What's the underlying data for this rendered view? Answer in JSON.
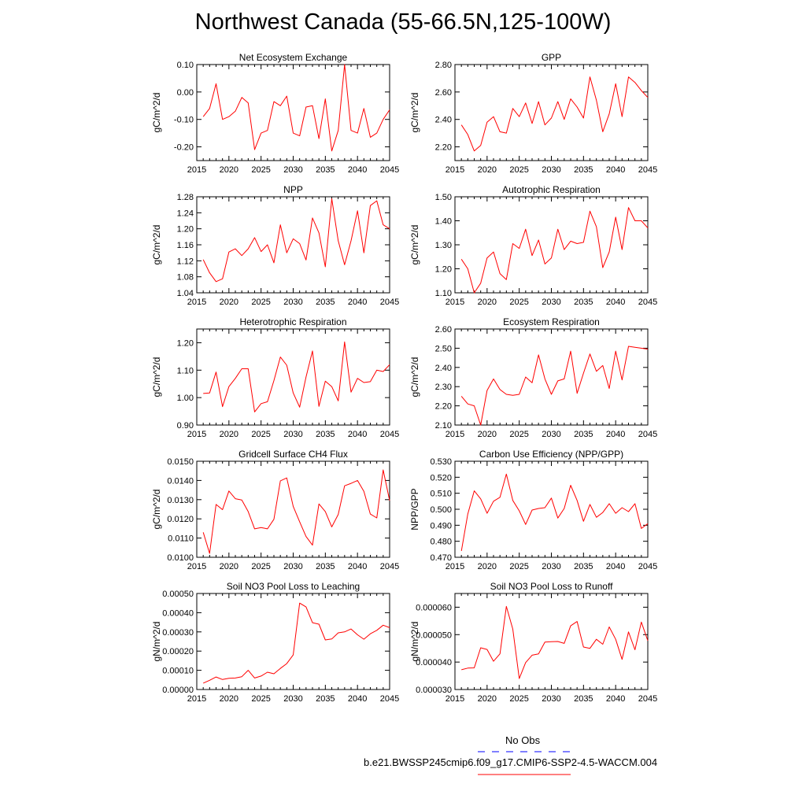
{
  "title": "Northwest Canada (55-66.5N,125-100W)",
  "colors": {
    "series": "#ff0000",
    "obs": "#0000ff",
    "axis": "#000000"
  },
  "legend": {
    "obs_label": "No Obs",
    "model_label": "b.e21.BWSSP245cmip6.f09_g17.CMIP6-SSP2-4.5-WACCM.004"
  },
  "chart_data": [
    {
      "type": "line",
      "title": "Net Ecosystem Exchange",
      "xlabel": "",
      "ylabel": "gC/m^2/d",
      "xlim": [
        2015,
        2045
      ],
      "ylim": [
        -0.25,
        0.1
      ],
      "xticks": [
        2015,
        2020,
        2025,
        2030,
        2035,
        2040,
        2045
      ],
      "xtick_labels": [
        "2015",
        "2020",
        "2025",
        "2030",
        "2035",
        "2040",
        "2045"
      ],
      "yticks": [
        -0.2,
        -0.1,
        0.0,
        0.1
      ],
      "ytick_labels": [
        "-0.20",
        "-0.10",
        "0.00",
        "0.10"
      ],
      "x": [
        2016,
        2017,
        2018,
        2019,
        2020,
        2021,
        2022,
        2023,
        2024,
        2025,
        2026,
        2027,
        2028,
        2029,
        2030,
        2031,
        2032,
        2033,
        2034,
        2035,
        2036,
        2037,
        2038,
        2039,
        2040,
        2041,
        2042,
        2043,
        2044,
        2045
      ],
      "series": [
        {
          "values": [
            -0.09,
            -0.06,
            0.03,
            -0.1,
            -0.09,
            -0.07,
            -0.02,
            -0.04,
            -0.21,
            -0.15,
            -0.14,
            -0.035,
            -0.05,
            -0.015,
            -0.15,
            -0.16,
            -0.055,
            -0.05,
            -0.17,
            -0.025,
            -0.215,
            -0.14,
            0.1,
            -0.14,
            -0.15,
            -0.06,
            -0.165,
            -0.15,
            -0.1,
            -0.065
          ]
        }
      ]
    },
    {
      "type": "line",
      "title": "GPP",
      "xlabel": "",
      "ylabel": "gC/m^2/d",
      "xlim": [
        2015,
        2045
      ],
      "ylim": [
        2.1,
        2.8
      ],
      "xticks": [
        2015,
        2020,
        2025,
        2030,
        2035,
        2040,
        2045
      ],
      "xtick_labels": [
        "2015",
        "2020",
        "2025",
        "2030",
        "2035",
        "2040",
        "2045"
      ],
      "yticks": [
        2.2,
        2.4,
        2.6,
        2.8
      ],
      "ytick_labels": [
        "2.20",
        "2.40",
        "2.60",
        "2.80"
      ],
      "x": [
        2016,
        2017,
        2018,
        2019,
        2020,
        2021,
        2022,
        2023,
        2024,
        2025,
        2026,
        2027,
        2028,
        2029,
        2030,
        2031,
        2032,
        2033,
        2034,
        2035,
        2036,
        2037,
        2038,
        2039,
        2040,
        2041,
        2042,
        2043,
        2044,
        2045
      ],
      "series": [
        {
          "values": [
            2.36,
            2.29,
            2.17,
            2.21,
            2.38,
            2.42,
            2.31,
            2.3,
            2.48,
            2.42,
            2.52,
            2.37,
            2.53,
            2.36,
            2.41,
            2.53,
            2.4,
            2.55,
            2.49,
            2.41,
            2.71,
            2.54,
            2.31,
            2.44,
            2.66,
            2.42,
            2.71,
            2.67,
            2.61,
            2.56
          ]
        }
      ]
    },
    {
      "type": "line",
      "title": "NPP",
      "xlabel": "",
      "ylabel": "gC/m^2/d",
      "xlim": [
        2015,
        2045
      ],
      "ylim": [
        1.04,
        1.28
      ],
      "xticks": [
        2015,
        2020,
        2025,
        2030,
        2035,
        2040,
        2045
      ],
      "xtick_labels": [
        "2015",
        "2020",
        "2025",
        "2030",
        "2035",
        "2040",
        "2045"
      ],
      "yticks": [
        1.04,
        1.08,
        1.12,
        1.16,
        1.2,
        1.24,
        1.28
      ],
      "ytick_labels": [
        "1.04",
        "1.08",
        "1.12",
        "1.16",
        "1.20",
        "1.24",
        "1.28"
      ],
      "x": [
        2016,
        2017,
        2018,
        2019,
        2020,
        2021,
        2022,
        2023,
        2024,
        2025,
        2026,
        2027,
        2028,
        2029,
        2030,
        2031,
        2032,
        2033,
        2034,
        2035,
        2036,
        2037,
        2038,
        2039,
        2040,
        2041,
        2042,
        2043,
        2044,
        2045
      ],
      "series": [
        {
          "values": [
            1.123,
            1.09,
            1.068,
            1.075,
            1.142,
            1.15,
            1.133,
            1.15,
            1.178,
            1.143,
            1.16,
            1.115,
            1.21,
            1.14,
            1.175,
            1.163,
            1.122,
            1.227,
            1.19,
            1.105,
            1.275,
            1.17,
            1.11,
            1.17,
            1.245,
            1.14,
            1.258,
            1.27,
            1.21,
            1.2
          ]
        }
      ]
    },
    {
      "type": "line",
      "title": "Autotrophic Respiration",
      "xlabel": "",
      "ylabel": "gC/m^2/d",
      "xlim": [
        2015,
        2045
      ],
      "ylim": [
        1.1,
        1.5
      ],
      "xticks": [
        2015,
        2020,
        2025,
        2030,
        2035,
        2040,
        2045
      ],
      "xtick_labels": [
        "2015",
        "2020",
        "2025",
        "2030",
        "2035",
        "2040",
        "2045"
      ],
      "yticks": [
        1.1,
        1.2,
        1.3,
        1.4,
        1.5
      ],
      "ytick_labels": [
        "1.10",
        "1.20",
        "1.30",
        "1.40",
        "1.50"
      ],
      "x": [
        2016,
        2017,
        2018,
        2019,
        2020,
        2021,
        2022,
        2023,
        2024,
        2025,
        2026,
        2027,
        2028,
        2029,
        2030,
        2031,
        2032,
        2033,
        2034,
        2035,
        2036,
        2037,
        2038,
        2039,
        2040,
        2041,
        2042,
        2043,
        2044,
        2045
      ],
      "series": [
        {
          "values": [
            1.24,
            1.2,
            1.1,
            1.14,
            1.245,
            1.27,
            1.18,
            1.155,
            1.305,
            1.285,
            1.365,
            1.255,
            1.32,
            1.22,
            1.245,
            1.365,
            1.28,
            1.315,
            1.305,
            1.31,
            1.44,
            1.375,
            1.205,
            1.27,
            1.415,
            1.28,
            1.455,
            1.4,
            1.4,
            1.37
          ]
        }
      ]
    },
    {
      "type": "line",
      "title": "Heterotrophic Respiration",
      "xlabel": "",
      "ylabel": "gC/m^2/d",
      "xlim": [
        2015,
        2045
      ],
      "ylim": [
        0.9,
        1.25
      ],
      "xticks": [
        2015,
        2020,
        2025,
        2030,
        2035,
        2040,
        2045
      ],
      "xtick_labels": [
        "2015",
        "2020",
        "2025",
        "2030",
        "2035",
        "2040",
        "2045"
      ],
      "yticks": [
        0.9,
        1.0,
        1.1,
        1.2
      ],
      "ytick_labels": [
        "0.90",
        "1.00",
        "1.10",
        "1.20"
      ],
      "x": [
        2016,
        2017,
        2018,
        2019,
        2020,
        2021,
        2022,
        2023,
        2024,
        2025,
        2026,
        2027,
        2028,
        2029,
        2030,
        2031,
        2032,
        2033,
        2034,
        2035,
        2036,
        2037,
        2038,
        2039,
        2040,
        2041,
        2042,
        2043,
        2044,
        2045
      ],
      "series": [
        {
          "values": [
            1.015,
            1.017,
            1.093,
            0.967,
            1.04,
            1.07,
            1.105,
            1.105,
            0.948,
            0.978,
            0.985,
            1.062,
            1.148,
            1.118,
            1.017,
            0.965,
            1.075,
            1.17,
            0.968,
            1.06,
            1.04,
            0.988,
            1.203,
            1.02,
            1.07,
            1.055,
            1.058,
            1.1,
            1.095,
            1.12
          ]
        }
      ]
    },
    {
      "type": "line",
      "title": "Ecosystem Respiration",
      "xlabel": "",
      "ylabel": "gC/m^2/d",
      "xlim": [
        2015,
        2045
      ],
      "ylim": [
        2.1,
        2.6
      ],
      "xticks": [
        2015,
        2020,
        2025,
        2030,
        2035,
        2040,
        2045
      ],
      "xtick_labels": [
        "2015",
        "2020",
        "2025",
        "2030",
        "2035",
        "2040",
        "2045"
      ],
      "yticks": [
        2.1,
        2.2,
        2.3,
        2.4,
        2.5,
        2.6
      ],
      "ytick_labels": [
        "2.10",
        "2.20",
        "2.30",
        "2.40",
        "2.50",
        "2.60"
      ],
      "x": [
        2016,
        2017,
        2018,
        2019,
        2020,
        2021,
        2022,
        2023,
        2024,
        2025,
        2026,
        2027,
        2028,
        2029,
        2030,
        2031,
        2032,
        2033,
        2034,
        2035,
        2036,
        2037,
        2038,
        2039,
        2040,
        2041,
        2042,
        2043,
        2044,
        2045
      ],
      "series": [
        {
          "values": [
            2.25,
            2.21,
            2.2,
            2.1,
            2.28,
            2.34,
            2.285,
            2.26,
            2.255,
            2.26,
            2.35,
            2.32,
            2.465,
            2.34,
            2.26,
            2.33,
            2.34,
            2.485,
            2.265,
            2.37,
            2.47,
            2.38,
            2.41,
            2.29,
            2.485,
            2.335,
            2.51,
            2.505,
            2.5,
            2.495
          ]
        }
      ]
    },
    {
      "type": "line",
      "title": "Gridcell Surface CH4 Flux",
      "xlabel": "",
      "ylabel": "gC/m^2/d",
      "xlim": [
        2015,
        2045
      ],
      "ylim": [
        0.01,
        0.015
      ],
      "xticks": [
        2015,
        2020,
        2025,
        2030,
        2035,
        2040,
        2045
      ],
      "xtick_labels": [
        "2015",
        "2020",
        "2025",
        "2030",
        "2035",
        "2040",
        "2045"
      ],
      "yticks": [
        0.01,
        0.011,
        0.012,
        0.013,
        0.014,
        0.015
      ],
      "ytick_labels": [
        "0.0100",
        "0.0110",
        "0.0120",
        "0.0130",
        "0.0140",
        "0.0150"
      ],
      "x": [
        2016,
        2017,
        2018,
        2019,
        2020,
        2021,
        2022,
        2023,
        2024,
        2025,
        2026,
        2027,
        2028,
        2029,
        2030,
        2031,
        2032,
        2033,
        2034,
        2035,
        2036,
        2037,
        2038,
        2039,
        2040,
        2041,
        2042,
        2043,
        2044,
        2045
      ],
      "series": [
        {
          "values": [
            0.0113,
            0.0102,
            0.01275,
            0.01248,
            0.01345,
            0.01305,
            0.01298,
            0.01238,
            0.01148,
            0.01155,
            0.01148,
            0.01198,
            0.01398,
            0.01413,
            0.01265,
            0.01185,
            0.01108,
            0.01063,
            0.01278,
            0.01238,
            0.01158,
            0.01223,
            0.01372,
            0.01385,
            0.014,
            0.01343,
            0.01225,
            0.01205,
            0.01455,
            0.01295
          ]
        }
      ]
    },
    {
      "type": "line",
      "title": "Carbon Use Efficiency (NPP/GPP)",
      "xlabel": "",
      "ylabel": "NPP/GPP",
      "xlim": [
        2015,
        2045
      ],
      "ylim": [
        0.47,
        0.53
      ],
      "xticks": [
        2015,
        2020,
        2025,
        2030,
        2035,
        2040,
        2045
      ],
      "xtick_labels": [
        "2015",
        "2020",
        "2025",
        "2030",
        "2035",
        "2040",
        "2045"
      ],
      "yticks": [
        0.47,
        0.48,
        0.49,
        0.5,
        0.51,
        0.52,
        0.53
      ],
      "ytick_labels": [
        "0.470",
        "0.480",
        "0.490",
        "0.500",
        "0.510",
        "0.520",
        "0.530"
      ],
      "x": [
        2016,
        2017,
        2018,
        2019,
        2020,
        2021,
        2022,
        2023,
        2024,
        2025,
        2026,
        2027,
        2028,
        2029,
        2030,
        2031,
        2032,
        2033,
        2034,
        2035,
        2036,
        2037,
        2038,
        2039,
        2040,
        2041,
        2042,
        2043,
        2044,
        2045
      ],
      "series": [
        {
          "values": [
            0.474,
            0.497,
            0.5115,
            0.5065,
            0.4975,
            0.505,
            0.5075,
            0.522,
            0.5055,
            0.499,
            0.4905,
            0.4995,
            0.5005,
            0.501,
            0.507,
            0.4945,
            0.5005,
            0.515,
            0.5055,
            0.4925,
            0.503,
            0.495,
            0.498,
            0.5035,
            0.4975,
            0.501,
            0.4985,
            0.5035,
            0.488,
            0.491
          ]
        }
      ]
    },
    {
      "type": "line",
      "title": "Soil NO3 Pool Loss to Leaching",
      "xlabel": "",
      "ylabel": "gN/m^2/d",
      "xlim": [
        2015,
        2045
      ],
      "ylim": [
        0.0,
        0.0005
      ],
      "xticks": [
        2015,
        2020,
        2025,
        2030,
        2035,
        2040,
        2045
      ],
      "xtick_labels": [
        "2015",
        "2020",
        "2025",
        "2030",
        "2035",
        "2040",
        "2045"
      ],
      "yticks": [
        0.0,
        0.0001,
        0.0002,
        0.0003,
        0.0004,
        0.0005
      ],
      "ytick_labels": [
        "0.00000",
        "0.00010",
        "0.00020",
        "0.00030",
        "0.00040",
        "0.00050"
      ],
      "x": [
        2016,
        2017,
        2018,
        2019,
        2020,
        2021,
        2022,
        2023,
        2024,
        2025,
        2026,
        2027,
        2028,
        2029,
        2030,
        2031,
        2032,
        2033,
        2034,
        2035,
        2036,
        2037,
        2038,
        2039,
        2040,
        2041,
        2042,
        2043,
        2044,
        2045
      ],
      "series": [
        {
          "values": [
            3.3e-05,
            4.8e-05,
            6.5e-05,
            5.2e-05,
            5.8e-05,
            6e-05,
            6.7e-05,
            0.0001,
            6e-05,
            7e-05,
            9e-05,
            8.2e-05,
            0.00011,
            0.000135,
            0.00018,
            0.00045,
            0.00043,
            0.000348,
            0.00034,
            0.000258,
            0.000263,
            0.000295,
            0.0003,
            0.000315,
            0.000285,
            0.000262,
            0.00029,
            0.000308,
            0.000335,
            0.000322
          ]
        }
      ]
    },
    {
      "type": "line",
      "title": "Soil NO3 Pool Loss to Runoff",
      "xlabel": "",
      "ylabel": "gN/m^2/d",
      "xlim": [
        2015,
        2045
      ],
      "ylim": [
        3e-05,
        6.5e-05
      ],
      "xticks": [
        2015,
        2020,
        2025,
        2030,
        2035,
        2040,
        2045
      ],
      "xtick_labels": [
        "2015",
        "2020",
        "2025",
        "2030",
        "2035",
        "2040",
        "2045"
      ],
      "yticks": [
        3e-05,
        4e-05,
        5e-05,
        6e-05
      ],
      "ytick_labels": [
        "0.000030",
        "0.000040",
        "0.000050",
        "0.000060"
      ],
      "x": [
        2016,
        2017,
        2018,
        2019,
        2020,
        2021,
        2022,
        2023,
        2024,
        2025,
        2026,
        2027,
        2028,
        2029,
        2030,
        2031,
        2032,
        2033,
        2034,
        2035,
        2036,
        2037,
        2038,
        2039,
        2040,
        2041,
        2042,
        2043,
        2044,
        2045
      ],
      "series": [
        {
          "values": [
            3.72e-05,
            3.78e-05,
            3.79e-05,
            4.52e-05,
            4.46e-05,
            4.03e-05,
            4.3e-05,
            6.03e-05,
            5.2e-05,
            3.4e-05,
            3.98e-05,
            4.25e-05,
            4.3e-05,
            4.73e-05,
            4.74e-05,
            4.75e-05,
            4.68e-05,
            5.32e-05,
            5.48e-05,
            4.55e-05,
            4.5e-05,
            4.83e-05,
            4.65e-05,
            5.28e-05,
            4.83e-05,
            4.1e-05,
            5.1e-05,
            4.45e-05,
            5.46e-05,
            4.78e-05
          ]
        }
      ]
    }
  ]
}
